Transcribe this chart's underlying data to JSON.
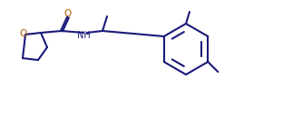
{
  "bg_color": "#ffffff",
  "line_color": "#1a1a7a",
  "o_color": "#b35900",
  "nh_color": "#1a1a7a",
  "line_width": 1.5,
  "font_size": 7.5,
  "fig_width": 3.12,
  "fig_height": 1.32,
  "dpi": 100,
  "xlim": [
    0,
    31.2
  ],
  "ylim": [
    0,
    13.2
  ]
}
